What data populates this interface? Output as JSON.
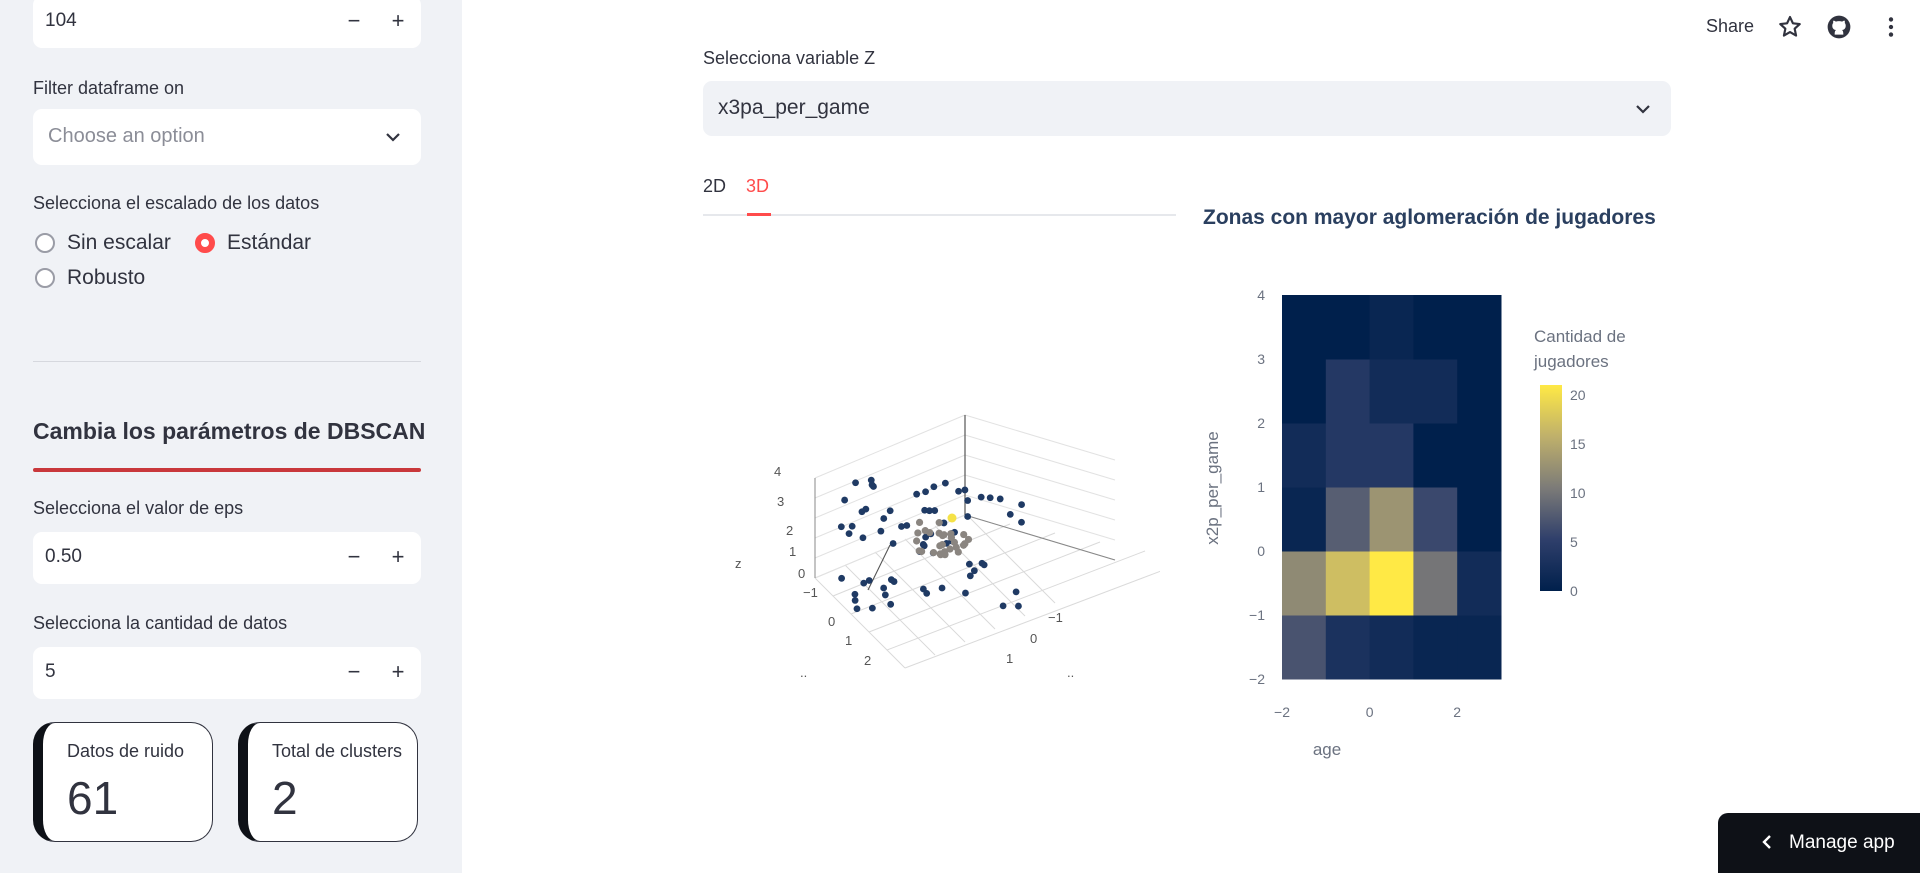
{
  "sidebar": {
    "top_input_value": "104",
    "filter_label": "Filter dataframe on",
    "filter_placeholder": "Choose an option",
    "scaling_label": "Selecciona el escalado de los datos",
    "scaling_options": [
      "Sin escalar",
      "Estándar",
      "Robusto"
    ],
    "scaling_selected": "Estándar",
    "dbscan_heading": "Cambia los parámetros de DBSCAN",
    "eps_label": "Selecciona el valor de eps",
    "eps_value": "0.50",
    "min_samples_label": "Selecciona la cantidad de datos",
    "min_samples_value": "5",
    "minus_symbol": "−",
    "plus_symbol": "+"
  },
  "metrics": [
    {
      "label": "Datos de ruido",
      "value": "61"
    },
    {
      "label": "Total de clusters",
      "value": "2"
    }
  ],
  "header": {
    "share_label": "Share"
  },
  "main": {
    "z_label": "Selecciona variable Z",
    "z_value": "x3pa_per_game",
    "tabs": [
      "2D",
      "3D"
    ],
    "active_tab": "3D"
  },
  "scatter3d": {
    "z_axis_label": "z",
    "z_ticks": [
      "4",
      "3",
      "2",
      "1",
      "0",
      "−1"
    ],
    "x_ticks": [
      "0",
      "1",
      "2"
    ],
    "y_ticks": [
      "−1",
      "0",
      "1"
    ],
    "x_axis_label": "..",
    "y_axis_label": ".."
  },
  "chart_data": {
    "type": "heatmap",
    "title": "Zonas con mayor aglomeración de jugadores",
    "xlabel": "age",
    "ylabel": "x2p_per_game",
    "x_bins": [
      -2,
      -1,
      0,
      1,
      2,
      3
    ],
    "y_bins": [
      -2,
      -1,
      0,
      1,
      2,
      3,
      4
    ],
    "x_ticks": [
      "−2",
      "0",
      "2"
    ],
    "y_ticks": [
      "−2",
      "−1",
      "0",
      "1",
      "2",
      "3",
      "4"
    ],
    "z": [
      [
        7,
        3,
        2,
        1,
        1
      ],
      [
        12,
        17,
        21,
        10,
        2
      ],
      [
        1,
        8,
        13,
        6,
        0
      ],
      [
        2,
        4,
        4,
        0,
        0
      ],
      [
        0,
        4,
        2,
        2,
        0
      ],
      [
        0,
        0,
        1,
        0,
        0
      ]
    ],
    "colorbar": {
      "title": "Cantidad de jugadores",
      "ticks": [
        0,
        5,
        10,
        15,
        20
      ],
      "range": [
        0,
        21
      ]
    },
    "colors": {
      "low": "#00204c",
      "mid": "#7c7b78",
      "high": "#ffe945"
    }
  }
}
